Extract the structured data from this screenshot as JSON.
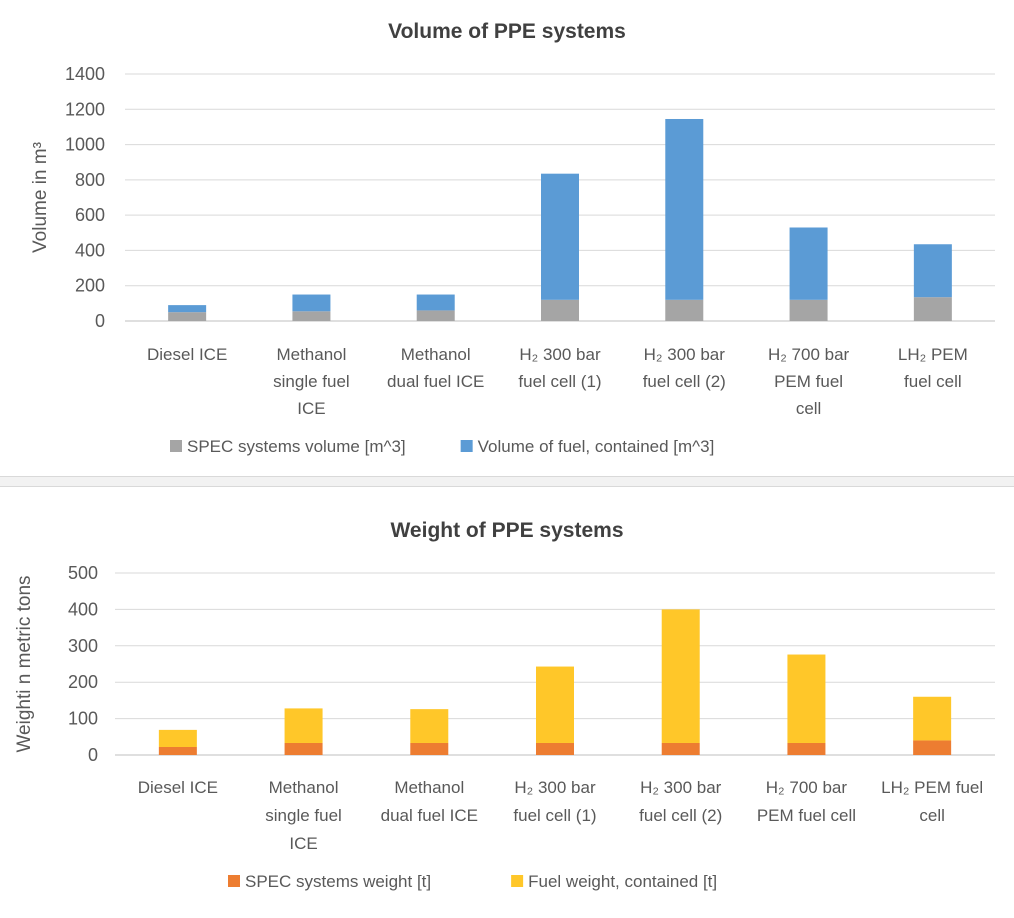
{
  "chart_data": [
    {
      "type": "bar",
      "stacked": true,
      "title": "Volume of PPE systems",
      "xlabel": "",
      "ylabel": "Volume in m³",
      "ylim": [
        0,
        1400
      ],
      "yticks": [
        0,
        200,
        400,
        600,
        800,
        1000,
        1200,
        1400
      ],
      "grid": true,
      "legend_position": "bottom",
      "categories": [
        [
          "Diesel ICE"
        ],
        [
          "Methanol",
          "single fuel",
          "ICE"
        ],
        [
          "Methanol",
          "dual fuel ICE"
        ],
        [
          "H₂ 300 bar",
          "fuel cell (1)"
        ],
        [
          "H₂ 300 bar",
          "fuel cell (2)"
        ],
        [
          "H₂ 700 bar",
          "PEM fuel",
          "cell"
        ],
        [
          "LH₂ PEM",
          "fuel cell"
        ]
      ],
      "series": [
        {
          "name": "SPEC systems volume  [m^3]",
          "color": "#a5a5a5",
          "values": [
            50,
            55,
            60,
            120,
            120,
            120,
            135
          ]
        },
        {
          "name": "Volume of fuel, contained  [m^3]",
          "color": "#5b9bd5",
          "values": [
            40,
            95,
            90,
            715,
            1025,
            410,
            300
          ]
        }
      ]
    },
    {
      "type": "bar",
      "stacked": true,
      "title": "Weight of PPE systems",
      "xlabel": "",
      "ylabel": "Weighti n metric tons",
      "ylim": [
        0,
        500
      ],
      "yticks": [
        0,
        100,
        200,
        300,
        400,
        500
      ],
      "grid": true,
      "legend_position": "bottom",
      "categories": [
        [
          "Diesel ICE"
        ],
        [
          "Methanol",
          "single fuel",
          "ICE"
        ],
        [
          "Methanol",
          "dual fuel ICE"
        ],
        [
          "H₂ 300 bar",
          "fuel cell (1)"
        ],
        [
          "H₂ 300 bar",
          "fuel cell (2)"
        ],
        [
          "H₂ 700 bar",
          "PEM fuel cell"
        ],
        [
          "LH₂ PEM fuel",
          "cell"
        ]
      ],
      "series": [
        {
          "name": "SPEC systems weight  [t]",
          "color": "#ed7d31",
          "values": [
            22,
            33,
            33,
            33,
            33,
            33,
            40
          ]
        },
        {
          "name": "Fuel weight, contained  [t]",
          "color": "#ffc729",
          "values": [
            47,
            95,
            93,
            210,
            367,
            243,
            120
          ]
        }
      ]
    }
  ]
}
